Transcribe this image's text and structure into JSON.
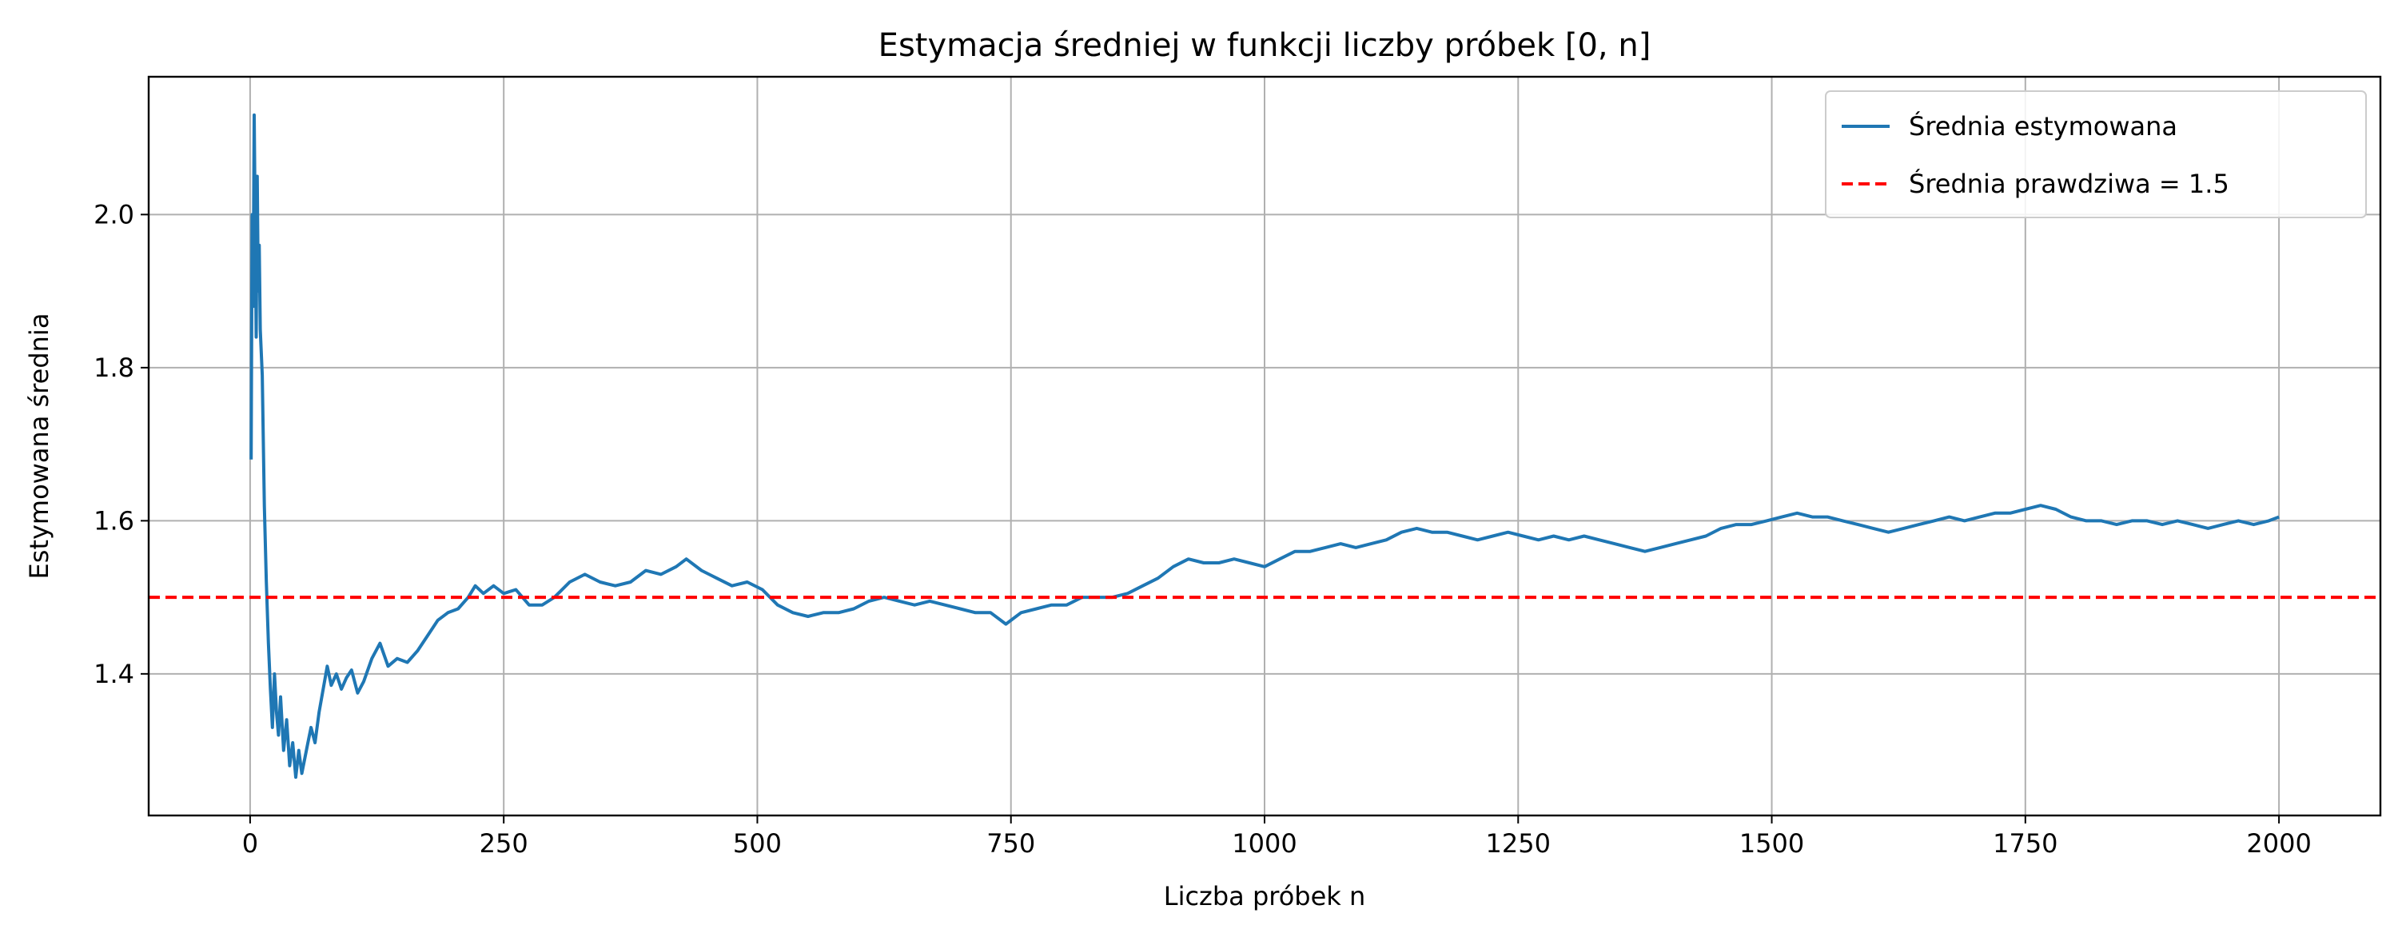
{
  "chart_data": {
    "type": "line",
    "title": "Estymacja średniej w funkcji liczby próbek [0, n]",
    "xlabel": "Liczba próbek n",
    "ylabel": "Estymowana średnia",
    "xlim": [
      -100,
      2100
    ],
    "ylim": [
      1.215,
      2.18
    ],
    "x_ticks": [
      0,
      250,
      500,
      750,
      1000,
      1250,
      1500,
      1750,
      2000
    ],
    "x_tick_labels": [
      "0",
      "250",
      "500",
      "750",
      "1000",
      "1250",
      "1500",
      "1750",
      "2000"
    ],
    "y_ticks": [
      1.4,
      1.6,
      1.8,
      2.0
    ],
    "y_tick_labels": [
      "1.4",
      "1.6",
      "1.8",
      "2.0"
    ],
    "grid": true,
    "legend_position": "top-right",
    "series": [
      {
        "name": "Średnia estymowana",
        "color": "#1f77b4",
        "style": "solid",
        "points": [
          [
            1,
            1.68
          ],
          [
            2,
            2.0
          ],
          [
            3,
            1.88
          ],
          [
            4,
            2.13
          ],
          [
            6,
            1.84
          ],
          [
            7,
            2.05
          ],
          [
            8,
            1.9
          ],
          [
            9,
            1.96
          ],
          [
            10,
            1.85
          ],
          [
            12,
            1.79
          ],
          [
            14,
            1.62
          ],
          [
            16,
            1.52
          ],
          [
            18,
            1.44
          ],
          [
            20,
            1.38
          ],
          [
            22,
            1.33
          ],
          [
            24,
            1.4
          ],
          [
            26,
            1.35
          ],
          [
            28,
            1.32
          ],
          [
            30,
            1.37
          ],
          [
            33,
            1.3
          ],
          [
            36,
            1.34
          ],
          [
            39,
            1.28
          ],
          [
            42,
            1.31
          ],
          [
            45,
            1.265
          ],
          [
            48,
            1.3
          ],
          [
            51,
            1.27
          ],
          [
            54,
            1.29
          ],
          [
            57,
            1.31
          ],
          [
            60,
            1.33
          ],
          [
            64,
            1.31
          ],
          [
            68,
            1.35
          ],
          [
            72,
            1.38
          ],
          [
            76,
            1.41
          ],
          [
            80,
            1.385
          ],
          [
            85,
            1.4
          ],
          [
            90,
            1.38
          ],
          [
            95,
            1.395
          ],
          [
            100,
            1.405
          ],
          [
            106,
            1.375
          ],
          [
            112,
            1.39
          ],
          [
            120,
            1.42
          ],
          [
            128,
            1.44
          ],
          [
            136,
            1.41
          ],
          [
            145,
            1.42
          ],
          [
            155,
            1.415
          ],
          [
            165,
            1.43
          ],
          [
            175,
            1.45
          ],
          [
            185,
            1.47
          ],
          [
            195,
            1.48
          ],
          [
            205,
            1.485
          ],
          [
            215,
            1.5
          ],
          [
            222,
            1.515
          ],
          [
            230,
            1.505
          ],
          [
            240,
            1.515
          ],
          [
            250,
            1.505
          ],
          [
            262,
            1.51
          ],
          [
            275,
            1.49
          ],
          [
            288,
            1.49
          ],
          [
            300,
            1.5
          ],
          [
            315,
            1.52
          ],
          [
            330,
            1.53
          ],
          [
            345,
            1.52
          ],
          [
            360,
            1.515
          ],
          [
            375,
            1.52
          ],
          [
            390,
            1.535
          ],
          [
            405,
            1.53
          ],
          [
            420,
            1.54
          ],
          [
            430,
            1.55
          ],
          [
            445,
            1.535
          ],
          [
            460,
            1.525
          ],
          [
            475,
            1.515
          ],
          [
            490,
            1.52
          ],
          [
            505,
            1.51
          ],
          [
            520,
            1.49
          ],
          [
            535,
            1.48
          ],
          [
            550,
            1.475
          ],
          [
            565,
            1.48
          ],
          [
            580,
            1.48
          ],
          [
            595,
            1.485
          ],
          [
            610,
            1.495
          ],
          [
            625,
            1.5
          ],
          [
            640,
            1.495
          ],
          [
            655,
            1.49
          ],
          [
            670,
            1.495
          ],
          [
            685,
            1.49
          ],
          [
            700,
            1.485
          ],
          [
            715,
            1.48
          ],
          [
            730,
            1.48
          ],
          [
            745,
            1.465
          ],
          [
            760,
            1.48
          ],
          [
            775,
            1.485
          ],
          [
            790,
            1.49
          ],
          [
            805,
            1.49
          ],
          [
            820,
            1.5
          ],
          [
            835,
            1.5
          ],
          [
            850,
            1.5
          ],
          [
            865,
            1.505
          ],
          [
            880,
            1.515
          ],
          [
            895,
            1.525
          ],
          [
            910,
            1.54
          ],
          [
            925,
            1.55
          ],
          [
            940,
            1.545
          ],
          [
            955,
            1.545
          ],
          [
            970,
            1.55
          ],
          [
            985,
            1.545
          ],
          [
            1000,
            1.54
          ],
          [
            1015,
            1.55
          ],
          [
            1030,
            1.56
          ],
          [
            1045,
            1.56
          ],
          [
            1060,
            1.565
          ],
          [
            1075,
            1.57
          ],
          [
            1090,
            1.565
          ],
          [
            1105,
            1.57
          ],
          [
            1120,
            1.575
          ],
          [
            1135,
            1.585
          ],
          [
            1150,
            1.59
          ],
          [
            1165,
            1.585
          ],
          [
            1180,
            1.585
          ],
          [
            1195,
            1.58
          ],
          [
            1210,
            1.575
          ],
          [
            1225,
            1.58
          ],
          [
            1240,
            1.585
          ],
          [
            1255,
            1.58
          ],
          [
            1270,
            1.575
          ],
          [
            1285,
            1.58
          ],
          [
            1300,
            1.575
          ],
          [
            1315,
            1.58
          ],
          [
            1330,
            1.575
          ],
          [
            1345,
            1.57
          ],
          [
            1360,
            1.565
          ],
          [
            1375,
            1.56
          ],
          [
            1390,
            1.565
          ],
          [
            1405,
            1.57
          ],
          [
            1420,
            1.575
          ],
          [
            1435,
            1.58
          ],
          [
            1450,
            1.59
          ],
          [
            1465,
            1.595
          ],
          [
            1480,
            1.595
          ],
          [
            1495,
            1.6
          ],
          [
            1510,
            1.605
          ],
          [
            1525,
            1.61
          ],
          [
            1540,
            1.605
          ],
          [
            1555,
            1.605
          ],
          [
            1570,
            1.6
          ],
          [
            1585,
            1.595
          ],
          [
            1600,
            1.59
          ],
          [
            1615,
            1.585
          ],
          [
            1630,
            1.59
          ],
          [
            1645,
            1.595
          ],
          [
            1660,
            1.6
          ],
          [
            1675,
            1.605
          ],
          [
            1690,
            1.6
          ],
          [
            1705,
            1.605
          ],
          [
            1720,
            1.61
          ],
          [
            1735,
            1.61
          ],
          [
            1750,
            1.615
          ],
          [
            1765,
            1.62
          ],
          [
            1780,
            1.615
          ],
          [
            1795,
            1.605
          ],
          [
            1810,
            1.6
          ],
          [
            1825,
            1.6
          ],
          [
            1840,
            1.595
          ],
          [
            1855,
            1.6
          ],
          [
            1870,
            1.6
          ],
          [
            1885,
            1.595
          ],
          [
            1900,
            1.6
          ],
          [
            1915,
            1.595
          ],
          [
            1930,
            1.59
          ],
          [
            1945,
            1.595
          ],
          [
            1960,
            1.6
          ],
          [
            1975,
            1.595
          ],
          [
            1990,
            1.6
          ],
          [
            2000,
            1.605
          ]
        ]
      },
      {
        "name": "Średnia prawdziwa = 1.5",
        "color": "#ff0000",
        "style": "dashed",
        "y": 1.5
      }
    ]
  }
}
